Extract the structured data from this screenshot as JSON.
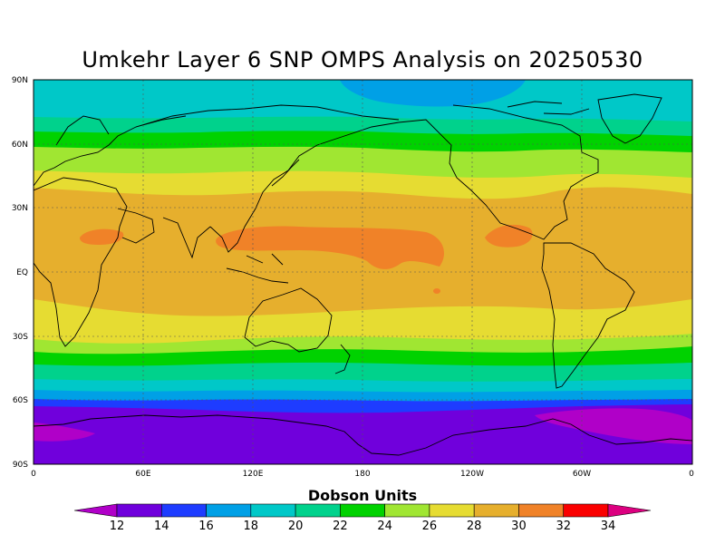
{
  "title": "Umkehr Layer 6 SNP OMPS Analysis on 20250530",
  "colorbar": {
    "label": "Dobson Units",
    "ticks": [
      "12",
      "14",
      "16",
      "18",
      "20",
      "22",
      "24",
      "26",
      "28",
      "30",
      "32",
      "34"
    ],
    "colors": [
      "#b000c8",
      "#7000dc",
      "#1e3cff",
      "#00a0e6",
      "#00c8c8",
      "#00d28c",
      "#00d200",
      "#a0e632",
      "#e6dc32",
      "#e6af2d",
      "#f08228",
      "#fa0000",
      "#dc0080"
    ]
  },
  "axes": {
    "lat_ticks": [
      "90N",
      "60N",
      "30N",
      "EQ",
      "30S",
      "60S",
      "90S"
    ],
    "lon_ticks": [
      "0",
      "60E",
      "120E",
      "180",
      "120W",
      "60W",
      "0"
    ]
  },
  "chart_data": {
    "type": "heatmap",
    "title": "Umkehr Layer 6 SNP OMPS Analysis on 20250530",
    "units": "Dobson Units",
    "x_range": [
      0,
      360
    ],
    "y_range": [
      -90,
      90
    ],
    "bands_by_latitude": [
      {
        "lat_from": 90,
        "lat_to": 84,
        "value_range": [
          16,
          18
        ]
      },
      {
        "lat_from": 84,
        "lat_to": 72,
        "value_range": [
          20,
          22
        ]
      },
      {
        "lat_from": 72,
        "lat_to": 62,
        "value_range": [
          22,
          24
        ]
      },
      {
        "lat_from": 62,
        "lat_to": 52,
        "value_range": [
          24,
          26
        ]
      },
      {
        "lat_from": 52,
        "lat_to": 40,
        "value_range": [
          26,
          28
        ]
      },
      {
        "lat_from": 40,
        "lat_to": 28,
        "value_range": [
          28,
          30
        ]
      },
      {
        "lat_from": 28,
        "lat_to": -15,
        "value_range": [
          30,
          32
        ]
      },
      {
        "lat_from": -15,
        "lat_to": -30,
        "value_range": [
          28,
          30
        ]
      },
      {
        "lat_from": -30,
        "lat_to": -38,
        "value_range": [
          26,
          28
        ]
      },
      {
        "lat_from": -38,
        "lat_to": -48,
        "value_range": [
          24,
          26
        ]
      },
      {
        "lat_from": -48,
        "lat_to": -58,
        "value_range": [
          20,
          22
        ]
      },
      {
        "lat_from": -58,
        "lat_to": -65,
        "value_range": [
          16,
          18
        ]
      },
      {
        "lat_from": -65,
        "lat_to": -90,
        "value_range": [
          14,
          16
        ]
      }
    ],
    "grid": true
  }
}
